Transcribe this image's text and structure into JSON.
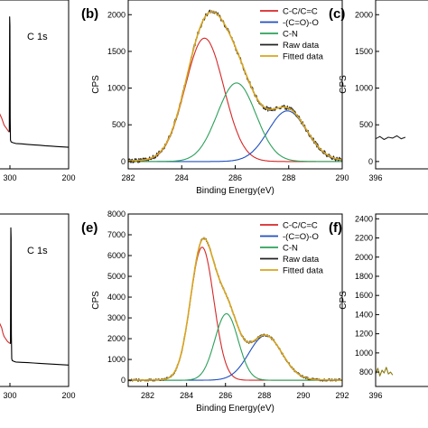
{
  "chart_data": [
    {
      "type": "line",
      "panel": "left-top (cropped)",
      "xlim": [
        200,
        320
      ],
      "x_reversed": true,
      "x_ticks": [
        300,
        200
      ],
      "annotations": [
        "C 1s"
      ],
      "series": [
        {
          "name": "",
          "color": "#d42a2a",
          "x": [
            320,
            318,
            314,
            312,
            310,
            308,
            306,
            304,
            302
          ],
          "y": [
            0.36,
            0.33,
            0.3,
            0.28,
            0.26,
            0.25,
            0.24,
            0.23,
            0.22
          ]
        },
        {
          "name": "",
          "color": "#000000",
          "x": [
            302,
            301,
            300.5,
            300,
            299.5,
            299,
            298,
            295,
            290,
            280,
            270,
            260,
            250,
            240,
            230,
            220,
            210,
            200
          ],
          "y": [
            0.22,
            0.22,
            0.9,
            0.85,
            0.3,
            0.17,
            0.16,
            0.155,
            0.15,
            0.148,
            0.145,
            0.142,
            0.14,
            0.137,
            0.135,
            0.132,
            0.13,
            0.128
          ]
        }
      ]
    },
    {
      "type": "line",
      "panel_label": "(b)",
      "xlabel": "Binding Energy(eV)",
      "ylabel": "CPS",
      "xlim": [
        282,
        290
      ],
      "ylim": [
        -100,
        2200
      ],
      "x_ticks": [
        282,
        284,
        286,
        288,
        290
      ],
      "y_ticks": [
        0,
        500,
        1000,
        1500,
        2000
      ],
      "legend_position": "top-right",
      "series": [
        {
          "name": "C-C/C=C",
          "color": "#d62728",
          "peak": {
            "center": 284.85,
            "height": 1680,
            "sigma": 0.72
          }
        },
        {
          "name": "-(C=O)-O",
          "color": "#1f4fbf",
          "peak": {
            "center": 287.95,
            "height": 690,
            "sigma": 0.72
          }
        },
        {
          "name": "C-N",
          "color": "#2ca05a",
          "peak": {
            "center": 286.05,
            "height": 1070,
            "sigma": 0.72
          }
        },
        {
          "name": "Raw data",
          "color": "#222222",
          "noise": 32
        },
        {
          "name": "Fitted data",
          "color": "#d8a520"
        }
      ]
    },
    {
      "type": "line",
      "panel_label": "(c)",
      "ylabel": "CPS",
      "xlim": [
        396,
        410
      ],
      "ylim": [
        -100,
        2200
      ],
      "x_ticks": [
        396
      ],
      "y_ticks": [
        0,
        500,
        1000,
        1500,
        2000
      ],
      "series": [
        {
          "name": "",
          "color": "#222222",
          "x": [
            396,
            397,
            398,
            399,
            400,
            401,
            402,
            403
          ],
          "y": [
            310,
            340,
            300,
            330,
            320,
            350,
            310,
            330
          ]
        }
      ]
    },
    {
      "type": "line",
      "panel": "left-bottom (cropped)",
      "xlim": [
        200,
        320
      ],
      "x_reversed": true,
      "x_ticks": [
        300,
        200
      ],
      "annotations": [
        "C 1s"
      ],
      "series": [
        {
          "name": "",
          "color": "#d42a2a",
          "x": [
            320,
            318,
            314,
            312,
            310,
            308,
            306,
            304,
            302,
            300
          ],
          "y": [
            0.4,
            0.37,
            0.34,
            0.31,
            0.29,
            0.28,
            0.27,
            0.26,
            0.255,
            0.25
          ]
        },
        {
          "name": "",
          "color": "#000000",
          "x": [
            300,
            299,
            298.5,
            298,
            297.5,
            297,
            296,
            293,
            290,
            280,
            270,
            260,
            250,
            240,
            230,
            220,
            210,
            200
          ],
          "y": [
            0.25,
            0.25,
            0.92,
            0.86,
            0.3,
            0.16,
            0.15,
            0.145,
            0.142,
            0.14,
            0.138,
            0.136,
            0.134,
            0.132,
            0.13,
            0.128,
            0.126,
            0.124
          ]
        }
      ]
    },
    {
      "type": "line",
      "panel_label": "(e)",
      "xlabel": "Binding Energy(eV)",
      "ylabel": "CPS",
      "xlim": [
        281,
        292
      ],
      "ylim": [
        -300,
        8000
      ],
      "x_ticks": [
        282,
        284,
        286,
        288,
        290,
        292
      ],
      "y_ticks": [
        0,
        1000,
        2000,
        3000,
        4000,
        5000,
        6000,
        7000,
        8000
      ],
      "legend_position": "top-right",
      "series": [
        {
          "name": "C-C/C=C",
          "color": "#d62728",
          "peak": {
            "center": 284.8,
            "height": 6400,
            "sigma": 0.6
          }
        },
        {
          "name": "-(C=O)-O",
          "color": "#1f4fbf",
          "peak": {
            "center": 288.05,
            "height": 2150,
            "sigma": 0.85
          }
        },
        {
          "name": "C-N",
          "color": "#2ca05a",
          "peak": {
            "center": 286.05,
            "height": 3200,
            "sigma": 0.6
          }
        },
        {
          "name": "Raw data",
          "color": "#222222",
          "noise": 60
        },
        {
          "name": "Fitted data",
          "color": "#d8a520"
        }
      ]
    },
    {
      "type": "line",
      "panel_label": "(f)",
      "ylabel": "CPS",
      "xlim": [
        396,
        410
      ],
      "ylim": [
        650,
        2450
      ],
      "x_ticks": [
        396
      ],
      "y_ticks": [
        800,
        1000,
        1200,
        1400,
        1600,
        1800,
        2000,
        2200,
        2400
      ],
      "series": [
        {
          "name": "",
          "color": "#8a7a10",
          "x": [
            396,
            396.5,
            397,
            397.5,
            398,
            398.5,
            399,
            399.5,
            400
          ],
          "y": [
            780,
            840,
            760,
            820,
            790,
            850,
            780,
            800,
            770
          ]
        }
      ]
    }
  ]
}
